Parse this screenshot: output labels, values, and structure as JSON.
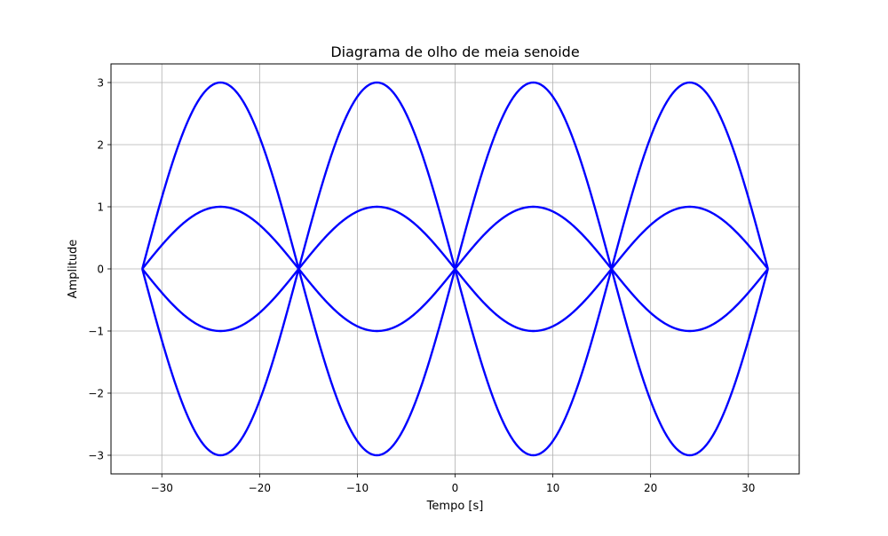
{
  "chart_data": {
    "type": "line",
    "title": "Diagrama de olho de meia senoide",
    "xlabel": "Tempo [s]",
    "ylabel": "Amplitude",
    "xlim": [
      -35.2,
      35.2
    ],
    "ylim": [
      -3.3,
      3.3
    ],
    "x_ticks": [
      -30,
      -20,
      -10,
      0,
      10,
      20,
      30
    ],
    "x_tick_labels": [
      "−30",
      "−20",
      "−10",
      "0",
      "10",
      "20",
      "30"
    ],
    "y_ticks": [
      -3,
      -2,
      -1,
      0,
      1,
      2,
      3
    ],
    "y_tick_labels": [
      "−3",
      "−2",
      "−1",
      "0",
      "1",
      "2",
      "3"
    ],
    "grid": true,
    "line_color": "#0000ff",
    "symbol_period": 16,
    "x_range": [
      -32,
      32
    ],
    "amplitudes": [
      3,
      1,
      -1,
      -3
    ]
  }
}
